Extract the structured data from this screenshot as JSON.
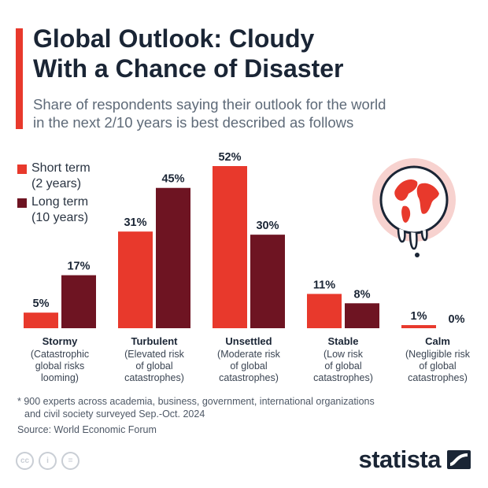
{
  "header": {
    "title_lines": [
      "Global Outlook: Cloudy",
      "With a Chance of Disaster"
    ],
    "subtitle_lines": [
      "Share of respondents saying their outlook for the world",
      "in the next 2/10 years is best described as follows"
    ]
  },
  "legend": [
    {
      "lines": [
        "Short term",
        "(2 years)"
      ],
      "color": "#e8392c"
    },
    {
      "lines": [
        "Long term",
        "(10 years)"
      ],
      "color": "#6e1422"
    }
  ],
  "chart_data": {
    "type": "bar",
    "categories": [
      "Stormy",
      "Turbulent",
      "Unsettled",
      "Stable",
      "Calm"
    ],
    "category_descriptions": [
      [
        "(Catastrophic",
        "global risks",
        "looming)"
      ],
      [
        "(Elevated risk",
        "of global",
        "catastrophes)"
      ],
      [
        "(Moderate risk",
        "of global",
        "catastrophes)"
      ],
      [
        "(Low risk",
        "of global",
        "catastrophes)"
      ],
      [
        "(Negligible risk",
        "of global",
        "catastrophes)"
      ]
    ],
    "series": [
      {
        "name": "Short term (2 years)",
        "values": [
          5,
          31,
          52,
          11,
          1
        ],
        "labels": [
          "5%",
          "31%",
          "52%",
          "11%",
          "1%"
        ],
        "color": "#e8392c"
      },
      {
        "name": "Long term (10 years)",
        "values": [
          17,
          45,
          30,
          8,
          0
        ],
        "labels": [
          "17%",
          "45%",
          "30%",
          "8%",
          "0%"
        ],
        "color": "#6e1422"
      }
    ],
    "ylim": [
      0,
      52
    ],
    "grid": false,
    "legend_position": "top-left"
  },
  "footnote_lines": [
    "* 900 experts across academia, business, government, international organizations",
    "and civil society surveyed Sep.-Oct. 2024"
  ],
  "source": "Source: World Economic Forum",
  "license_icons": [
    {
      "icon": "cc-icon",
      "text": "cc"
    },
    {
      "icon": "attribution-icon",
      "text": "i"
    },
    {
      "icon": "no-derivatives-icon",
      "text": "="
    }
  ],
  "brand": {
    "name": "statista",
    "icon": "statista-logo-icon"
  },
  "illustration": {
    "icon": "melting-globe-icon"
  }
}
